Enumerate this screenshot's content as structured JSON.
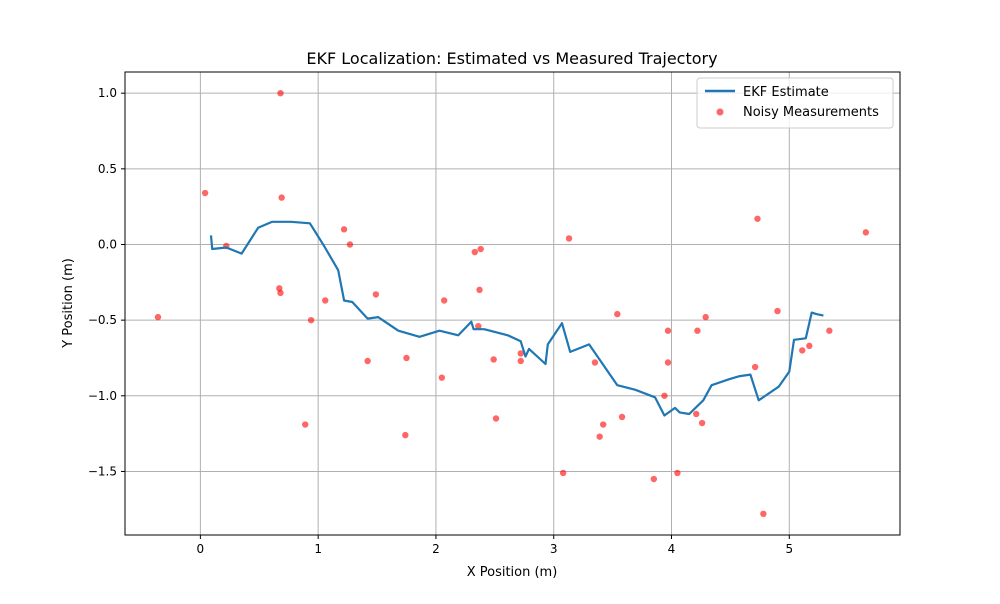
{
  "chart_data": {
    "type": "line",
    "title": "EKF Localization: Estimated vs Measured Trajectory",
    "xlabel": "X Position (m)",
    "ylabel": "Y Position (m)",
    "xlim": [
      -0.64,
      5.94
    ],
    "ylim": [
      -1.92,
      1.14
    ],
    "xticks": [
      0,
      1,
      2,
      3,
      4,
      5
    ],
    "yticks": [
      -1.5,
      -1.0,
      -0.5,
      0.0,
      0.5,
      1.0
    ],
    "xtick_labels": [
      "0",
      "1",
      "2",
      "3",
      "4",
      "5"
    ],
    "ytick_labels": [
      "−1.5",
      "−1.0",
      "−0.5",
      "0.0",
      "0.5",
      "1.0"
    ],
    "grid": true,
    "legend_position": "top-right",
    "colors": {
      "estimate": "#1f77b4",
      "measurements": "#ff0000"
    },
    "series": [
      {
        "name": "EKF Estimate",
        "kind": "line",
        "x": [
          0.09,
          0.1,
          0.22,
          0.35,
          0.49,
          0.61,
          0.77,
          0.93,
          1.05,
          1.17,
          1.22,
          1.29,
          1.42,
          1.51,
          1.68,
          1.86,
          2.03,
          2.19,
          2.3,
          2.32,
          2.41,
          2.61,
          2.72,
          2.76,
          2.79,
          2.93,
          2.95,
          3.07,
          3.14,
          3.3,
          3.54,
          3.69,
          3.86,
          3.94,
          4.03,
          4.07,
          4.15,
          4.27,
          4.34,
          4.49,
          4.58,
          4.67,
          4.74,
          4.91,
          5.0,
          5.04,
          5.14,
          5.19,
          5.23,
          5.29
        ],
        "y": [
          0.06,
          -0.03,
          -0.02,
          -0.06,
          0.11,
          0.15,
          0.15,
          0.14,
          -0.01,
          -0.17,
          -0.37,
          -0.38,
          -0.49,
          -0.48,
          -0.57,
          -0.61,
          -0.57,
          -0.6,
          -0.51,
          -0.56,
          -0.56,
          -0.6,
          -0.64,
          -0.74,
          -0.69,
          -0.79,
          -0.66,
          -0.52,
          -0.71,
          -0.66,
          -0.93,
          -0.96,
          -1.01,
          -1.13,
          -1.08,
          -1.11,
          -1.12,
          -1.03,
          -0.93,
          -0.89,
          -0.87,
          -0.86,
          -1.03,
          -0.94,
          -0.84,
          -0.63,
          -0.62,
          -0.45,
          -0.46,
          -0.47
        ]
      },
      {
        "name": "Noisy Measurements",
        "kind": "scatter",
        "x": [
          0.68,
          0.04,
          0.69,
          0.22,
          1.22,
          1.27,
          0.67,
          0.68,
          1.06,
          0.94,
          1.49,
          -0.36,
          1.42,
          1.75,
          0.89,
          1.74,
          2.07,
          2.05,
          2.33,
          2.38,
          2.37,
          2.36,
          2.49,
          2.51,
          2.72,
          2.72,
          3.13,
          3.08,
          3.35,
          3.39,
          3.42,
          3.54,
          3.58,
          3.85,
          3.94,
          3.97,
          3.97,
          4.05,
          4.21,
          4.22,
          4.26,
          4.29,
          4.71,
          4.73,
          4.78,
          4.9,
          5.11,
          5.17,
          5.34,
          5.65
        ],
        "y": [
          1.0,
          0.34,
          0.31,
          -0.01,
          0.1,
          0.0,
          -0.29,
          -0.32,
          -0.37,
          -0.5,
          -0.33,
          -0.48,
          -0.77,
          -0.75,
          -1.19,
          -1.26,
          -0.37,
          -0.88,
          -0.05,
          -0.03,
          -0.3,
          -0.54,
          -0.76,
          -1.15,
          -0.72,
          -0.77,
          0.04,
          -1.51,
          -0.78,
          -1.27,
          -1.19,
          -0.46,
          -1.14,
          -1.55,
          -1.0,
          -0.57,
          -0.78,
          -1.51,
          -1.12,
          -0.57,
          -1.18,
          -0.48,
          -0.81,
          0.17,
          -1.78,
          -0.44,
          -0.7,
          -0.67,
          -0.57,
          0.08
        ]
      }
    ]
  }
}
